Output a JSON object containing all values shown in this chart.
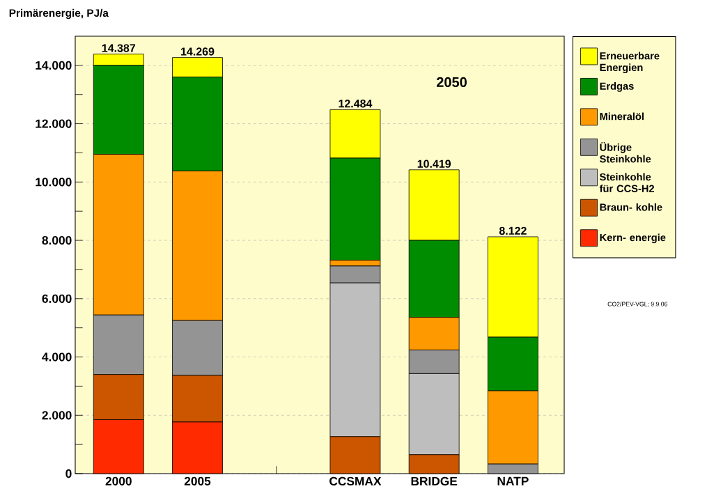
{
  "chart_data": {
    "type": "bar",
    "stacked": true,
    "title": "Primärenergie, PJ/a",
    "categories": [
      "2000",
      "2005",
      null,
      "CCSMAX",
      "BRIDGE",
      "NATP"
    ],
    "series": [
      {
        "name": "Kern- energie",
        "color": "#ff2a00",
        "values": [
          1850,
          1770,
          null,
          0,
          0,
          0
        ]
      },
      {
        "name": "Braun- kohle",
        "color": "#cc5500",
        "values": [
          1550,
          1600,
          null,
          1270,
          650,
          0
        ]
      },
      {
        "name": "Steinkohle für CCS-H2",
        "color": "#bebebe",
        "values": [
          0,
          0,
          null,
          5270,
          2780,
          0
        ]
      },
      {
        "name": "Übrige Steinkohle",
        "color": "#949494",
        "values": [
          2040,
          1880,
          null,
          580,
          810,
          330
        ]
      },
      {
        "name": "Mineralöl",
        "color": "#ff9900",
        "values": [
          5510,
          5130,
          null,
          200,
          1120,
          2510
        ]
      },
      {
        "name": "Erdgas",
        "color": "#008c00",
        "values": [
          3050,
          3220,
          null,
          3500,
          2640,
          1840
        ]
      },
      {
        "name": "Erneuerbare Energien",
        "color": "#ffff00",
        "values": [
          387,
          669,
          null,
          1664,
          2419,
          3442
        ]
      }
    ],
    "totals": [
      "14.387",
      "14.269",
      null,
      "12.484",
      "10.419",
      "8.122"
    ],
    "ylim": [
      0,
      15000
    ],
    "yticks": [
      {
        "value": 0,
        "label": "0"
      },
      {
        "value": 1000,
        "label": null
      },
      {
        "value": 2000,
        "label": "2.000"
      },
      {
        "value": 3000,
        "label": null
      },
      {
        "value": 4000,
        "label": "4.000"
      },
      {
        "value": 5000,
        "label": null
      },
      {
        "value": 6000,
        "label": "6.000"
      },
      {
        "value": 7000,
        "label": null
      },
      {
        "value": 8000,
        "label": "8.000"
      },
      {
        "value": 9000,
        "label": null
      },
      {
        "value": 10000,
        "label": "10.000"
      },
      {
        "value": 11000,
        "label": null
      },
      {
        "value": 12000,
        "label": "12.000"
      },
      {
        "value": 13000,
        "label": null
      },
      {
        "value": 14000,
        "label": "14.000"
      }
    ],
    "grid": "y",
    "legend": "top right",
    "annotations": [
      "2050",
      "CO2/PEV-VGL; 9.9.06"
    ]
  }
}
